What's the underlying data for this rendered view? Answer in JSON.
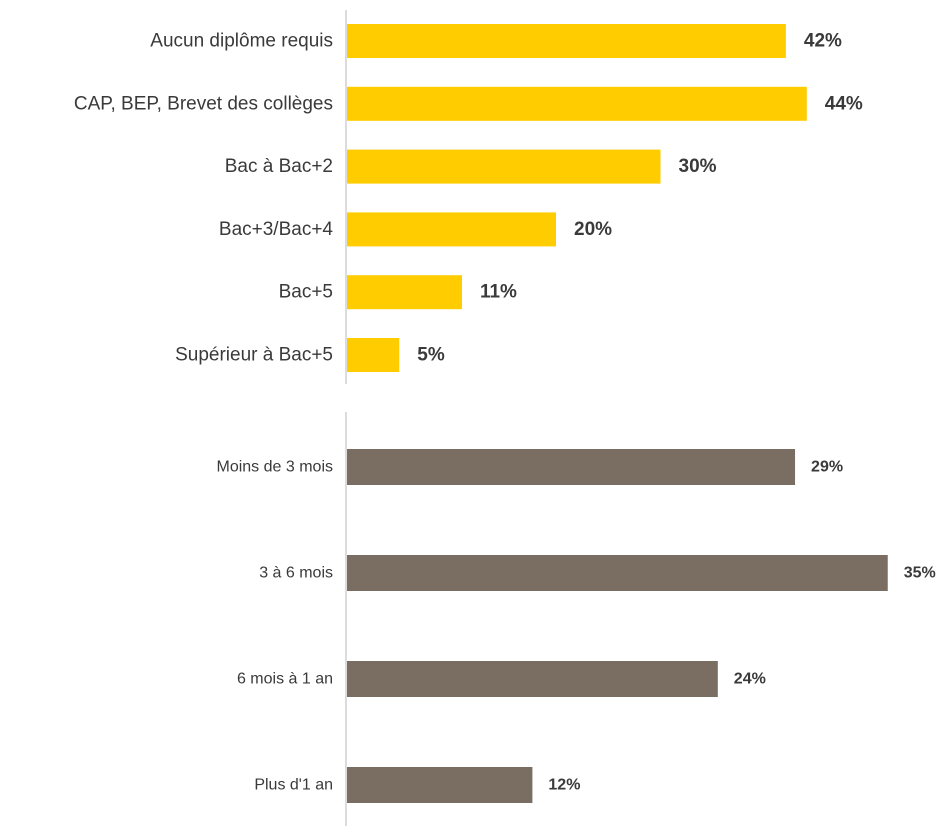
{
  "chart_data": [
    {
      "type": "bar",
      "orientation": "horizontal",
      "categories": [
        "Aucun diplôme requis",
        "CAP, BEP, Brevet des collèges",
        "Bac à Bac+2",
        "Bac+3/Bac+4",
        "Bac+5",
        "Supérieur à Bac+5"
      ],
      "values": [
        42,
        44,
        30,
        20,
        11,
        5
      ],
      "value_labels": [
        "42%",
        "44%",
        "30%",
        "20%",
        "11%",
        "5%"
      ],
      "unit": "%",
      "color": "#FFCC00",
      "grid": false,
      "legend": "none"
    },
    {
      "type": "bar",
      "orientation": "horizontal",
      "categories": [
        "Moins de 3 mois",
        "3 à 6 mois",
        "6 mois à 1 an",
        "Plus d'1 an"
      ],
      "values": [
        29,
        35,
        24,
        12
      ],
      "value_labels": [
        "29%",
        "35%",
        "24%",
        "12%"
      ],
      "unit": "%",
      "color": "#7A6E62",
      "grid": false,
      "legend": "none"
    }
  ]
}
